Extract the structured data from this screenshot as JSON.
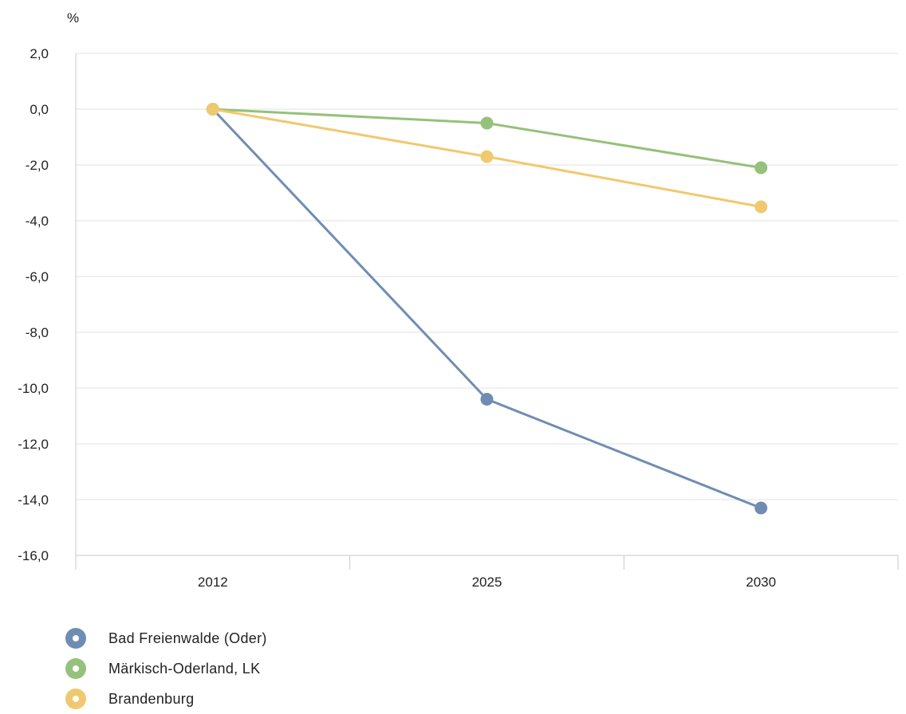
{
  "chart_data": {
    "type": "line",
    "unit": "%",
    "categories": [
      "2012",
      "2025",
      "2030"
    ],
    "ylim": [
      -16,
      2
    ],
    "yticks": [
      "2,0",
      "0,0",
      "-2,0",
      "-4,0",
      "-6,0",
      "-8,0",
      "-10,0",
      "-12,0",
      "-14,0",
      "-16,0"
    ],
    "grid": true,
    "legend_position": "bottom-left",
    "series": [
      {
        "name": "Bad Freienwalde (Oder)",
        "color": "#6f8db3",
        "values": [
          0.0,
          -10.4,
          -14.3
        ]
      },
      {
        "name": "Märkisch-Oderland, LK",
        "color": "#95c17a",
        "values": [
          0.0,
          -0.5,
          -2.1
        ]
      },
      {
        "name": "Brandenburg",
        "color": "#f0c96e",
        "values": [
          0.0,
          -1.7,
          -3.5
        ]
      }
    ]
  }
}
